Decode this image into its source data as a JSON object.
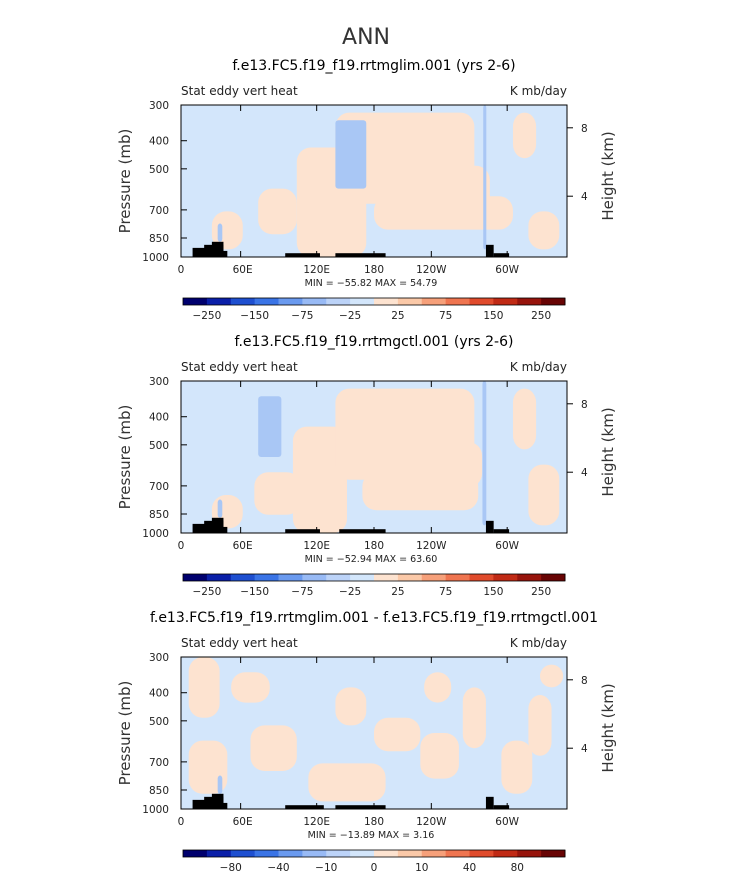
{
  "figure": {
    "title": "ANN"
  },
  "colors": {
    "positive_fill": "#fde3d0",
    "negative_fill": "#d3e6fb",
    "strong_negative": "#a9c7f5",
    "terrain": "#000000"
  },
  "chart_data": [
    {
      "type": "heatmap",
      "title": "f.e13.FC5.f19_f19.rrtmglim.001 (yrs 2-6)",
      "left_label": "Stat eddy vert heat",
      "right_label": "K mb/day",
      "ylabel": "Pressure (mb)",
      "ylabel_right": "Height (km)",
      "x_ticks": [
        "0",
        "60E",
        "120E",
        "180",
        "120W",
        "60W"
      ],
      "y_ticks": [
        "300",
        "400",
        "500",
        "700",
        "850",
        "1000"
      ],
      "right_ticks": [
        "8",
        "4"
      ],
      "stats": "MIN = −55.82   MAX =  54.79",
      "colorbar_labels": [
        "−250",
        "−150",
        "−75",
        "−25",
        "25",
        "75",
        "150",
        "250"
      ],
      "min": -55.82,
      "max": 54.79
    },
    {
      "type": "heatmap",
      "title": "f.e13.FC5.f19_f19.rrtmgctl.001 (yrs 2-6)",
      "left_label": "Stat eddy vert heat",
      "right_label": "K mb/day",
      "ylabel": "Pressure (mb)",
      "ylabel_right": "Height (km)",
      "x_ticks": [
        "0",
        "60E",
        "120E",
        "180",
        "120W",
        "60W"
      ],
      "y_ticks": [
        "300",
        "400",
        "500",
        "700",
        "850",
        "1000"
      ],
      "right_ticks": [
        "8",
        "4"
      ],
      "stats": "MIN = −52.94   MAX =  63.60",
      "colorbar_labels": [
        "−250",
        "−150",
        "−75",
        "−25",
        "25",
        "75",
        "150",
        "250"
      ],
      "min": -52.94,
      "max": 63.6
    },
    {
      "type": "heatmap",
      "title": "f.e13.FC5.f19_f19.rrtmglim.001 - f.e13.FC5.f19_f19.rrtmgctl.001",
      "left_label": "Stat eddy vert heat",
      "right_label": "K mb/day",
      "ylabel": "Pressure (mb)",
      "ylabel_right": "Height (km)",
      "x_ticks": [
        "0",
        "60E",
        "120E",
        "180",
        "120W",
        "60W"
      ],
      "y_ticks": [
        "300",
        "400",
        "500",
        "700",
        "850",
        "1000"
      ],
      "right_ticks": [
        "8",
        "4"
      ],
      "stats": "MIN = −13.89   MAX =    3.16",
      "colorbar_labels": [
        "−80",
        "−40",
        "−10",
        "0",
        "10",
        "40",
        "80"
      ],
      "min": -13.89,
      "max": 3.16
    }
  ]
}
